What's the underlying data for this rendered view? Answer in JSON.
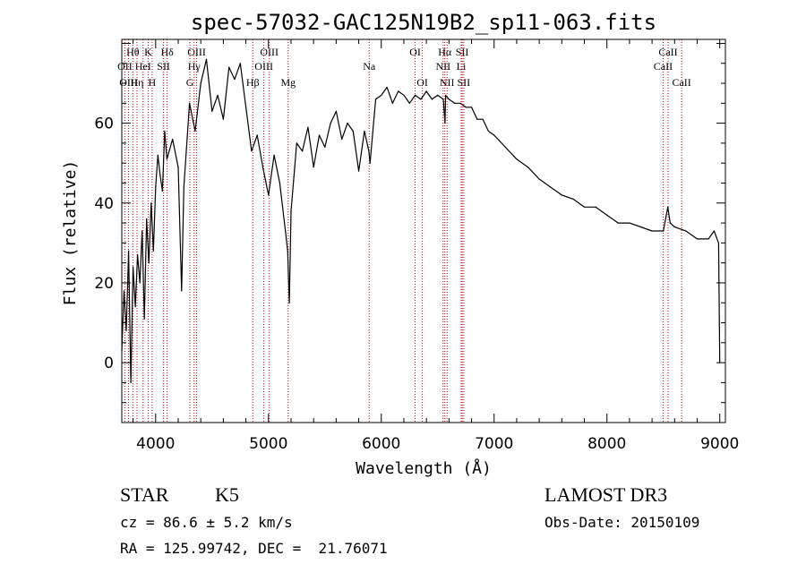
{
  "chart_data": {
    "type": "line",
    "title": "spec-57032-GAC125N19B2_sp11-063.fits",
    "xlabel": "Wavelength (Å)",
    "ylabel": "Flux (relative)",
    "xlim": [
      3700,
      9050
    ],
    "ylim": [
      -15,
      81
    ],
    "x_ticks": [
      4000,
      5000,
      6000,
      7000,
      8000,
      9000
    ],
    "y_ticks": [
      0,
      20,
      40,
      60
    ],
    "series": [
      {
        "name": "spectrum",
        "x": [
          3700,
          3720,
          3740,
          3760,
          3780,
          3800,
          3820,
          3840,
          3860,
          3880,
          3900,
          3920,
          3940,
          3960,
          3980,
          4000,
          4020,
          4040,
          4060,
          4080,
          4100,
          4150,
          4200,
          4230,
          4250,
          4300,
          4350,
          4400,
          4450,
          4500,
          4550,
          4600,
          4650,
          4700,
          4750,
          4800,
          4850,
          4900,
          4950,
          5000,
          5050,
          5100,
          5150,
          5170,
          5185,
          5200,
          5250,
          5300,
          5350,
          5400,
          5450,
          5500,
          5550,
          5600,
          5650,
          5700,
          5750,
          5800,
          5850,
          5890,
          5900,
          5950,
          6000,
          6050,
          6100,
          6150,
          6200,
          6250,
          6300,
          6350,
          6400,
          6450,
          6500,
          6550,
          6565,
          6570,
          6600,
          6650,
          6700,
          6750,
          6800,
          6850,
          6900,
          6950,
          7000,
          7100,
          7200,
          7300,
          7400,
          7500,
          7600,
          7700,
          7800,
          7900,
          8000,
          8100,
          8200,
          8300,
          8400,
          8500,
          8540,
          8560,
          8600,
          8700,
          8800,
          8900,
          8950,
          8990,
          9000
        ],
        "y": [
          3,
          18,
          8,
          28,
          -5,
          24,
          14,
          27,
          20,
          33,
          11,
          36,
          25,
          40,
          28,
          44,
          52,
          47,
          43,
          58,
          51,
          56,
          49,
          18,
          44,
          65,
          58,
          70,
          76,
          63,
          67,
          61,
          74,
          71,
          75,
          64,
          53,
          57,
          49,
          42,
          52,
          45,
          33,
          28,
          15,
          38,
          55,
          53,
          59,
          49,
          57,
          54,
          60,
          63,
          56,
          60,
          58,
          48,
          58,
          53,
          50,
          66,
          67,
          69,
          65,
          68,
          67,
          65,
          67,
          66,
          68,
          66,
          67,
          66,
          60,
          67,
          66,
          65,
          65,
          64,
          64,
          61,
          61,
          58,
          57,
          54,
          51,
          49,
          46,
          44,
          42,
          41,
          39,
          39,
          37,
          35,
          35,
          34,
          33,
          33,
          39,
          35,
          34,
          33,
          31,
          31,
          33,
          30,
          0
        ]
      }
    ],
    "lines": [
      {
        "label": "Hθ",
        "x": 3798,
        "row": 1
      },
      {
        "label": "OII",
        "x": 3727,
        "row": 2
      },
      {
        "label": "OIII",
        "x": 3760,
        "row": 3
      },
      {
        "label": "K",
        "x": 3934,
        "row": 1
      },
      {
        "label": "HeI",
        "x": 3889,
        "row": 2
      },
      {
        "label": "Hη",
        "x": 3835,
        "row": 3
      },
      {
        "label": "H",
        "x": 3969,
        "row": 3
      },
      {
        "label": "Hδ",
        "x": 4102,
        "row": 1
      },
      {
        "label": "SII",
        "x": 4070,
        "row": 2
      },
      {
        "label": "OIII",
        "x": 4363,
        "row": 1
      },
      {
        "label": "Hγ",
        "x": 4341,
        "row": 2
      },
      {
        "label": "G",
        "x": 4304,
        "row": 3
      },
      {
        "label": "OIII",
        "x": 5007,
        "row": 1
      },
      {
        "label": "OIII",
        "x": 4959,
        "row": 2
      },
      {
        "label": "Hβ",
        "x": 4861,
        "row": 3
      },
      {
        "label": "Mg",
        "x": 5175,
        "row": 3
      },
      {
        "label": "Na",
        "x": 5893,
        "row": 2
      },
      {
        "label": "OI",
        "x": 6300,
        "row": 1
      },
      {
        "label": "OI",
        "x": 6364,
        "row": 3
      },
      {
        "label": "Hα",
        "x": 6563,
        "row": 1
      },
      {
        "label": "SII",
        "x": 6717,
        "row": 1
      },
      {
        "label": "NII",
        "x": 6548,
        "row": 2
      },
      {
        "label": "Li",
        "x": 6708,
        "row": 2
      },
      {
        "label": "NII",
        "x": 6583,
        "row": 3
      },
      {
        "label": "SII",
        "x": 6731,
        "row": 3
      },
      {
        "label": "CaII",
        "x": 8542,
        "row": 1
      },
      {
        "label": "CaII",
        "x": 8498,
        "row": 2
      },
      {
        "label": "CaII",
        "x": 8662,
        "row": 3
      }
    ],
    "colors": {
      "spectrum": "#000000",
      "lines": "#cc0000",
      "axes": "#000000"
    }
  },
  "info": {
    "object_class": "STAR",
    "subclass": "K5",
    "survey": "LAMOST DR3",
    "redshift": "cz = 86.6 ± 5.2 km/s",
    "obs_date": "Obs-Date: 20150109",
    "coords": "RA = 125.99742, DEC =  21.76071"
  }
}
